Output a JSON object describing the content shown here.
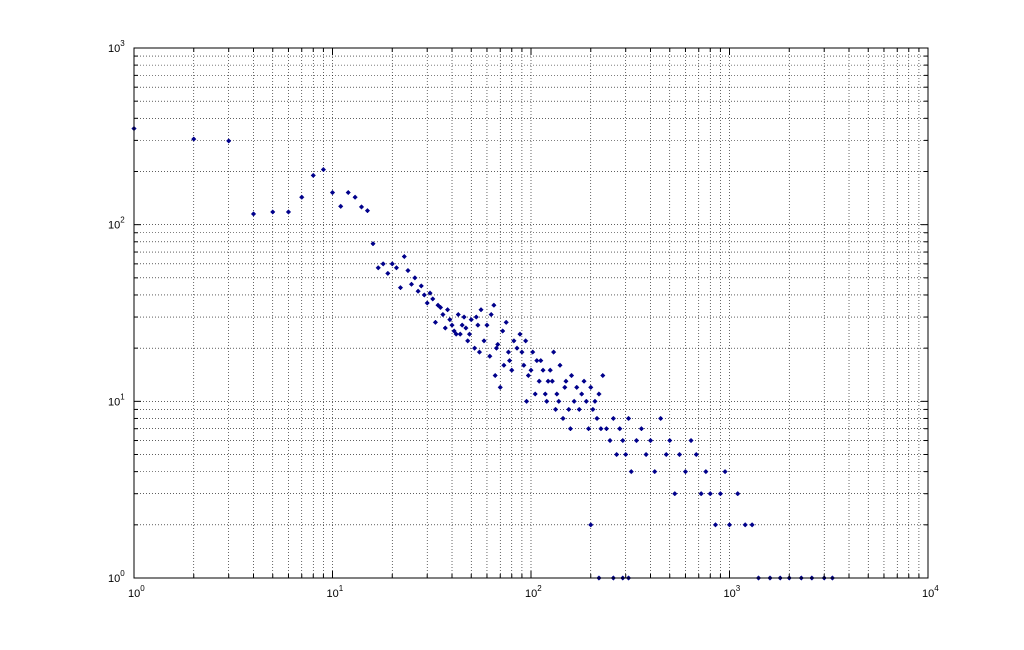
{
  "chart_data": {
    "type": "scatter",
    "xscale": "log",
    "yscale": "log",
    "xlim": [
      1,
      10000
    ],
    "ylim": [
      1,
      1000
    ],
    "grid": true,
    "title": "",
    "xlabel": "",
    "ylabel": "",
    "marker_color": "#00008b",
    "x_ticks": [
      {
        "base": "10",
        "exp": "0",
        "value": 1
      },
      {
        "base": "10",
        "exp": "1",
        "value": 10
      },
      {
        "base": "10",
        "exp": "2",
        "value": 100
      },
      {
        "base": "10",
        "exp": "3",
        "value": 1000
      },
      {
        "base": "10",
        "exp": "4",
        "value": 10000
      }
    ],
    "y_ticks": [
      {
        "base": "10",
        "exp": "0",
        "value": 1
      },
      {
        "base": "10",
        "exp": "1",
        "value": 10
      },
      {
        "base": "10",
        "exp": "2",
        "value": 100
      },
      {
        "base": "10",
        "exp": "3",
        "value": 1000
      }
    ],
    "points": [
      [
        1,
        350
      ],
      [
        2,
        305
      ],
      [
        3,
        298
      ],
      [
        4,
        115
      ],
      [
        5,
        118
      ],
      [
        6,
        118
      ],
      [
        7,
        143
      ],
      [
        8,
        190
      ],
      [
        9,
        205
      ],
      [
        10,
        152
      ],
      [
        11,
        127
      ],
      [
        12,
        152
      ],
      [
        13,
        143
      ],
      [
        14,
        126
      ],
      [
        15,
        120
      ],
      [
        16,
        78
      ],
      [
        17,
        57
      ],
      [
        18,
        60
      ],
      [
        19,
        53
      ],
      [
        20,
        60
      ],
      [
        21,
        57
      ],
      [
        22,
        44
      ],
      [
        23,
        66
      ],
      [
        24,
        55
      ],
      [
        25,
        46
      ],
      [
        26,
        50
      ],
      [
        27,
        42
      ],
      [
        28,
        45
      ],
      [
        29,
        40
      ],
      [
        30,
        36
      ],
      [
        31,
        41
      ],
      [
        32,
        38
      ],
      [
        33,
        28
      ],
      [
        34,
        35
      ],
      [
        35,
        34
      ],
      [
        36,
        31
      ],
      [
        37,
        26
      ],
      [
        38,
        33
      ],
      [
        39,
        29
      ],
      [
        40,
        27
      ],
      [
        41,
        25
      ],
      [
        42,
        24
      ],
      [
        43,
        31
      ],
      [
        44,
        24
      ],
      [
        45,
        27
      ],
      [
        46,
        30
      ],
      [
        47,
        26
      ],
      [
        48,
        22
      ],
      [
        49,
        24
      ],
      [
        50,
        29
      ],
      [
        52,
        20
      ],
      [
        53,
        30
      ],
      [
        54,
        27
      ],
      [
        55,
        19
      ],
      [
        56,
        33
      ],
      [
        58,
        22
      ],
      [
        60,
        27
      ],
      [
        62,
        18
      ],
      [
        63,
        31
      ],
      [
        65,
        35
      ],
      [
        66,
        14
      ],
      [
        67,
        20
      ],
      [
        68,
        21
      ],
      [
        70,
        12
      ],
      [
        72,
        25
      ],
      [
        73,
        16
      ],
      [
        75,
        28
      ],
      [
        77,
        19
      ],
      [
        78,
        17
      ],
      [
        80,
        15
      ],
      [
        82,
        22
      ],
      [
        85,
        20
      ],
      [
        88,
        24
      ],
      [
        90,
        19
      ],
      [
        92,
        16
      ],
      [
        94,
        22
      ],
      [
        95,
        10
      ],
      [
        97,
        14
      ],
      [
        100,
        15
      ],
      [
        102,
        19
      ],
      [
        105,
        11
      ],
      [
        107,
        17
      ],
      [
        110,
        13
      ],
      [
        112,
        17
      ],
      [
        115,
        15
      ],
      [
        118,
        11
      ],
      [
        120,
        10
      ],
      [
        122,
        13
      ],
      [
        125,
        15
      ],
      [
        128,
        13
      ],
      [
        130,
        19
      ],
      [
        133,
        9
      ],
      [
        135,
        11
      ],
      [
        138,
        10
      ],
      [
        140,
        16
      ],
      [
        145,
        8
      ],
      [
        148,
        12
      ],
      [
        150,
        13
      ],
      [
        155,
        9
      ],
      [
        158,
        7
      ],
      [
        160,
        14
      ],
      [
        165,
        10
      ],
      [
        170,
        12
      ],
      [
        175,
        9
      ],
      [
        180,
        11
      ],
      [
        185,
        13
      ],
      [
        190,
        10
      ],
      [
        195,
        7
      ],
      [
        200,
        12
      ],
      [
        205,
        9
      ],
      [
        210,
        10
      ],
      [
        215,
        8
      ],
      [
        220,
        11
      ],
      [
        225,
        7
      ],
      [
        230,
        14
      ],
      [
        240,
        7
      ],
      [
        250,
        6
      ],
      [
        260,
        8
      ],
      [
        270,
        5
      ],
      [
        280,
        7
      ],
      [
        290,
        6
      ],
      [
        300,
        5
      ],
      [
        310,
        8
      ],
      [
        320,
        4
      ],
      [
        340,
        6
      ],
      [
        360,
        7
      ],
      [
        380,
        5
      ],
      [
        400,
        6
      ],
      [
        420,
        4
      ],
      [
        450,
        8
      ],
      [
        480,
        5
      ],
      [
        500,
        6
      ],
      [
        530,
        3
      ],
      [
        560,
        5
      ],
      [
        600,
        4
      ],
      [
        640,
        6
      ],
      [
        680,
        5
      ],
      [
        720,
        3
      ],
      [
        760,
        4
      ],
      [
        800,
        3
      ],
      [
        850,
        2
      ],
      [
        900,
        3
      ],
      [
        950,
        4
      ],
      [
        1000,
        2
      ],
      [
        1100,
        3
      ],
      [
        1200,
        2
      ],
      [
        1300,
        2
      ],
      [
        1400,
        1
      ],
      [
        1600,
        1
      ],
      [
        1800,
        1
      ],
      [
        2000,
        1
      ],
      [
        2300,
        1
      ],
      [
        2600,
        1
      ],
      [
        3000,
        1
      ],
      [
        3300,
        1
      ],
      [
        200,
        2
      ],
      [
        220,
        1
      ],
      [
        260,
        1
      ],
      [
        290,
        1
      ],
      [
        310,
        1
      ]
    ]
  }
}
